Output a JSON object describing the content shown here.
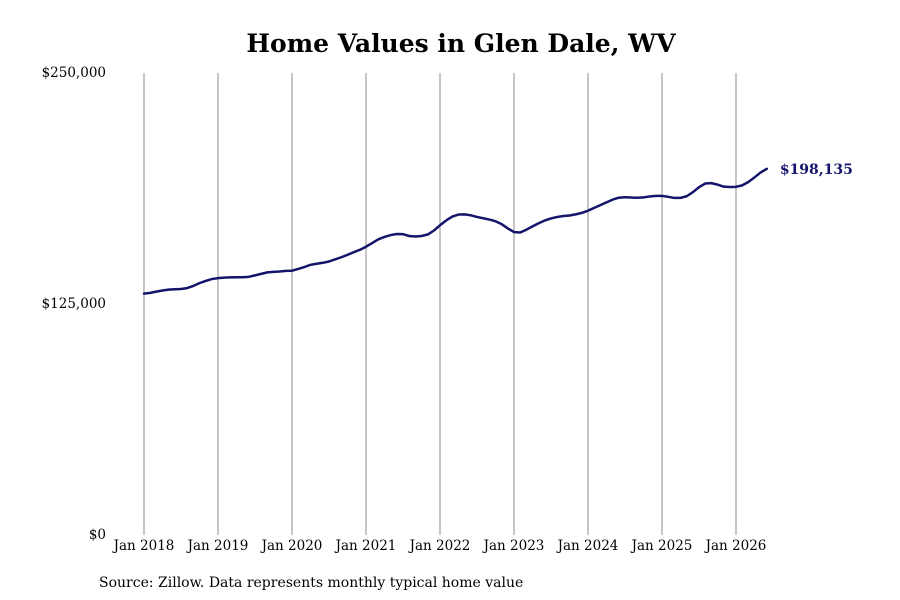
{
  "chart_data": {
    "type": "line",
    "title": "Home Values in Glen Dale, WV",
    "xlabel": "",
    "ylabel": "",
    "ylim": [
      0,
      250000
    ],
    "y_ticks": [
      {
        "value": 0,
        "label": "$0"
      },
      {
        "value": 125000,
        "label": "$125,000"
      },
      {
        "value": 250000,
        "label": "$250,000"
      }
    ],
    "x_ticks": [
      {
        "date": "2018-01",
        "label": "Jan 2018"
      },
      {
        "date": "2019-01",
        "label": "Jan 2019"
      },
      {
        "date": "2020-01",
        "label": "Jan 2020"
      },
      {
        "date": "2021-01",
        "label": "Jan 2021"
      },
      {
        "date": "2022-01",
        "label": "Jan 2022"
      },
      {
        "date": "2023-01",
        "label": "Jan 2023"
      },
      {
        "date": "2024-01",
        "label": "Jan 2024"
      },
      {
        "date": "2025-01",
        "label": "Jan 2025"
      },
      {
        "date": "2026-01",
        "label": "Jan 2026"
      }
    ],
    "grid": "vertical",
    "line_color": "#14146b",
    "series": [
      {
        "points": [
          [
            "2018-01",
            130600
          ],
          [
            "2018-02",
            131000
          ],
          [
            "2018-03",
            131700
          ],
          [
            "2018-04",
            132300
          ],
          [
            "2018-05",
            132800
          ],
          [
            "2018-06",
            133000
          ],
          [
            "2018-07",
            133100
          ],
          [
            "2018-08",
            133600
          ],
          [
            "2018-09",
            134800
          ],
          [
            "2018-10",
            136300
          ],
          [
            "2018-11",
            137500
          ],
          [
            "2018-12",
            138500
          ],
          [
            "2019-01",
            139000
          ],
          [
            "2019-02",
            139300
          ],
          [
            "2019-03",
            139400
          ],
          [
            "2019-04",
            139500
          ],
          [
            "2019-05",
            139500
          ],
          [
            "2019-06",
            139700
          ],
          [
            "2019-07",
            140500
          ],
          [
            "2019-08",
            141300
          ],
          [
            "2019-09",
            142100
          ],
          [
            "2019-10",
            142400
          ],
          [
            "2019-11",
            142600
          ],
          [
            "2019-12",
            142900
          ],
          [
            "2020-01",
            143000
          ],
          [
            "2020-02",
            144000
          ],
          [
            "2020-03",
            145000
          ],
          [
            "2020-04",
            146200
          ],
          [
            "2020-05",
            146800
          ],
          [
            "2020-06",
            147300
          ],
          [
            "2020-07",
            148000
          ],
          [
            "2020-08",
            149200
          ],
          [
            "2020-09",
            150300
          ],
          [
            "2020-10",
            151600
          ],
          [
            "2020-11",
            153000
          ],
          [
            "2020-12",
            154300
          ],
          [
            "2021-01",
            156000
          ],
          [
            "2021-02",
            158000
          ],
          [
            "2021-03",
            160000
          ],
          [
            "2021-04",
            161300
          ],
          [
            "2021-05",
            162300
          ],
          [
            "2021-06",
            162900
          ],
          [
            "2021-07",
            162800
          ],
          [
            "2021-08",
            161800
          ],
          [
            "2021-09",
            161500
          ],
          [
            "2021-10",
            161800
          ],
          [
            "2021-11",
            162600
          ],
          [
            "2021-12",
            164700
          ],
          [
            "2022-01",
            167600
          ],
          [
            "2022-02",
            170200
          ],
          [
            "2022-03",
            172300
          ],
          [
            "2022-04",
            173400
          ],
          [
            "2022-05",
            173500
          ],
          [
            "2022-06",
            173000
          ],
          [
            "2022-07",
            172100
          ],
          [
            "2022-08",
            171400
          ],
          [
            "2022-09",
            170700
          ],
          [
            "2022-10",
            169800
          ],
          [
            "2022-11",
            168200
          ],
          [
            "2022-12",
            165900
          ],
          [
            "2023-01",
            163900
          ],
          [
            "2023-02",
            163700
          ],
          [
            "2023-03",
            165200
          ],
          [
            "2023-04",
            167000
          ],
          [
            "2023-05",
            168700
          ],
          [
            "2023-06",
            170200
          ],
          [
            "2023-07",
            171300
          ],
          [
            "2023-08",
            172100
          ],
          [
            "2023-09",
            172600
          ],
          [
            "2023-10",
            172900
          ],
          [
            "2023-11",
            173500
          ],
          [
            "2023-12",
            174300
          ],
          [
            "2024-01",
            175500
          ],
          [
            "2024-02",
            177000
          ],
          [
            "2024-03",
            178500
          ],
          [
            "2024-04",
            180000
          ],
          [
            "2024-05",
            181500
          ],
          [
            "2024-06",
            182500
          ],
          [
            "2024-07",
            182800
          ],
          [
            "2024-08",
            182600
          ],
          [
            "2024-09",
            182500
          ],
          [
            "2024-10",
            182700
          ],
          [
            "2024-11",
            183200
          ],
          [
            "2024-12",
            183500
          ],
          [
            "2025-01",
            183500
          ],
          [
            "2025-02",
            183000
          ],
          [
            "2025-03",
            182400
          ],
          [
            "2025-04",
            182400
          ],
          [
            "2025-05",
            183300
          ],
          [
            "2025-06",
            185500
          ],
          [
            "2025-07",
            188200
          ],
          [
            "2025-08",
            190200
          ],
          [
            "2025-09",
            190400
          ],
          [
            "2025-10",
            189600
          ],
          [
            "2025-11",
            188500
          ],
          [
            "2025-12",
            188300
          ],
          [
            "2026-01",
            188400
          ],
          [
            "2026-02",
            189200
          ],
          [
            "2026-03",
            191000
          ],
          [
            "2026-04",
            193500
          ],
          [
            "2026-05",
            196200
          ],
          [
            "2026-06",
            198135
          ]
        ]
      }
    ],
    "end_label": "$198,135",
    "source": "Source: Zillow. Data represents monthly typical home value"
  }
}
